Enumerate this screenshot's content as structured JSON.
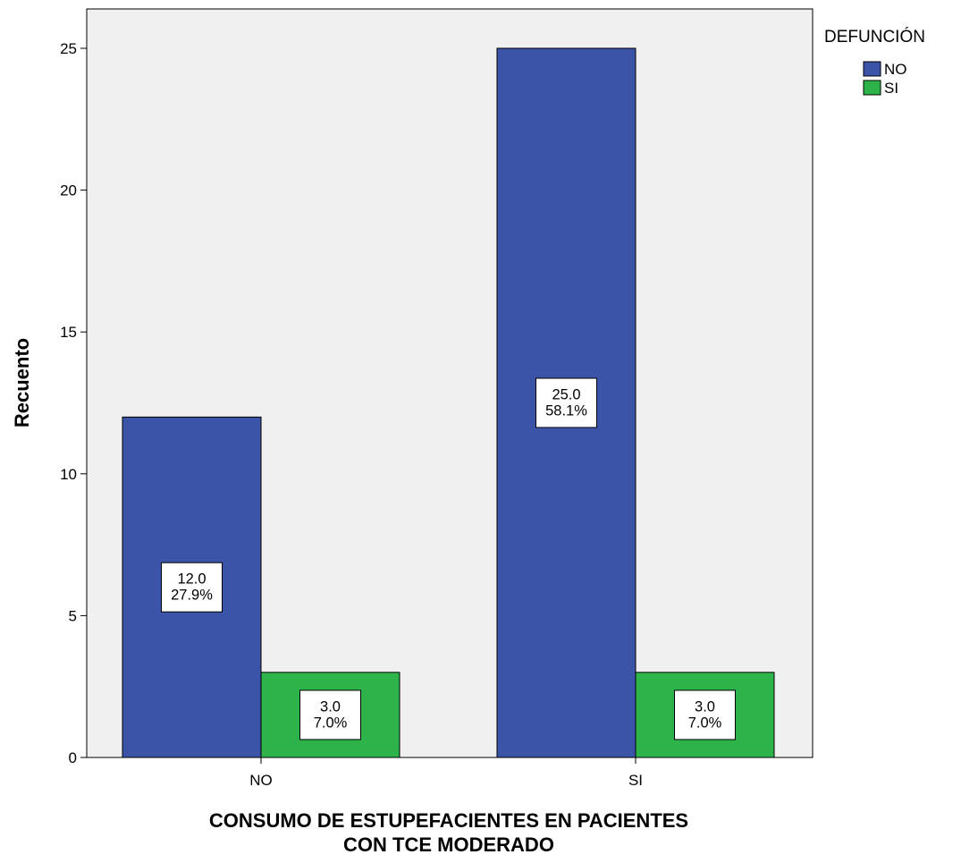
{
  "chart_data": {
    "type": "bar",
    "categories": [
      "NO",
      "SI"
    ],
    "series": [
      {
        "name": "NO",
        "values": [
          12,
          25
        ],
        "percents": [
          "27.9%",
          "58.1%"
        ],
        "color": "#3c54a7"
      },
      {
        "name": "SI",
        "values": [
          3,
          3
        ],
        "percents": [
          "7.0%",
          "7.0%"
        ],
        "color": "#2db34a"
      }
    ],
    "xlabel_lines": [
      "CONSUMO DE ESTUPEFACIENTES EN PACIENTES",
      "CON TCE MODERADO"
    ],
    "ylabel": "Recuento",
    "ylim": [
      0,
      25
    ],
    "yticks": [
      0,
      5,
      10,
      15,
      20,
      25
    ],
    "legend_title": "DEFUNCIÓN",
    "legend_position": "top-right",
    "grid": false,
    "plot_background": "#f0f0f0"
  }
}
